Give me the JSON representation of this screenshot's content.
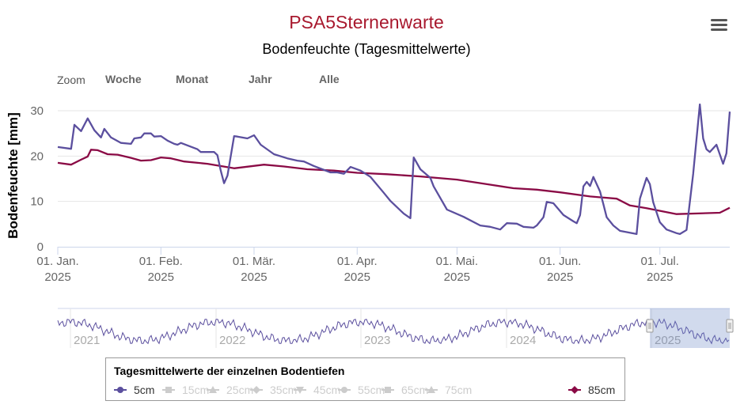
{
  "title": "PSA5Sternenwarte",
  "subtitle": "Bodenfeuchte (Tagesmittelwerte)",
  "menu_icon": "hamburger-menu-icon",
  "range_selector": {
    "label": "Zoom",
    "buttons": [
      "Woche",
      "Monat",
      "Jahr",
      "Alle"
    ]
  },
  "colors": {
    "title": "#a8192e",
    "series_5cm": "#5b4f9e",
    "series_85cm": "#8a0a45",
    "inactive": "#cccccc"
  },
  "legend": {
    "title": "Tagesmittelwerte der einzelnen Bodentiefen",
    "items": [
      {
        "label": "5cm",
        "visible": true,
        "symbol": "circle"
      },
      {
        "label": "15cm",
        "visible": false,
        "symbol": "square"
      },
      {
        "label": "25cm",
        "visible": false,
        "symbol": "triangle"
      },
      {
        "label": "35cm",
        "visible": false,
        "symbol": "diamond"
      },
      {
        "label": "45cm",
        "visible": false,
        "symbol": "triangle-down"
      },
      {
        "label": "55cm",
        "visible": false,
        "symbol": "circle"
      },
      {
        "label": "65cm",
        "visible": false,
        "symbol": "square"
      },
      {
        "label": "75cm",
        "visible": false,
        "symbol": "triangle"
      },
      {
        "label": "85cm",
        "visible": true,
        "symbol": "diamond"
      }
    ]
  },
  "navigator": {
    "year_labels": [
      "2021",
      "2022",
      "2023",
      "2024",
      "2025"
    ]
  },
  "chart_data": {
    "type": "line",
    "title": "Bodenfeuchte (Tagesmittelwerte)",
    "ylabel": "Bodenfeuchte [mm]",
    "ylim": [
      0,
      30
    ],
    "yticks": [
      "0",
      "10",
      "20",
      "30"
    ],
    "xlim": [
      "2025-01-01",
      "2025-07-22"
    ],
    "xticks": [
      {
        "date": "2025-01-01",
        "label": [
          "01. Jan.",
          "2025"
        ]
      },
      {
        "date": "2025-02-01",
        "label": [
          "01. Feb.",
          "2025"
        ]
      },
      {
        "date": "2025-03-01",
        "label": [
          "01. Mär.",
          "2025"
        ]
      },
      {
        "date": "2025-04-01",
        "label": [
          "01. Apr.",
          "2025"
        ]
      },
      {
        "date": "2025-05-01",
        "label": [
          "01. Mai.",
          "2025"
        ]
      },
      {
        "date": "2025-06-01",
        "label": [
          "01. Jun.",
          "2025"
        ]
      },
      {
        "date": "2025-07-01",
        "label": [
          "01. Jul.",
          "2025"
        ]
      }
    ],
    "grid": true,
    "legend_position": "bottom",
    "series": [
      {
        "name": "5cm",
        "color": "#5b4f9e",
        "points": [
          [
            "2025-01-01",
            22.0
          ],
          [
            "2025-01-05",
            21.6
          ],
          [
            "2025-01-06",
            26.9
          ],
          [
            "2025-01-08",
            25.5
          ],
          [
            "2025-01-10",
            28.3
          ],
          [
            "2025-01-12",
            25.7
          ],
          [
            "2025-01-14",
            24.1
          ],
          [
            "2025-01-15",
            26.0
          ],
          [
            "2025-01-17",
            24.1
          ],
          [
            "2025-01-20",
            22.9
          ],
          [
            "2025-01-23",
            22.7
          ],
          [
            "2025-01-24",
            23.9
          ],
          [
            "2025-01-26",
            24.1
          ],
          [
            "2025-01-27",
            25.0
          ],
          [
            "2025-01-29",
            25.0
          ],
          [
            "2025-01-30",
            24.3
          ],
          [
            "2025-02-01",
            24.4
          ],
          [
            "2025-02-03",
            23.4
          ],
          [
            "2025-02-05",
            22.7
          ],
          [
            "2025-02-06",
            22.5
          ],
          [
            "2025-02-07",
            22.9
          ],
          [
            "2025-02-12",
            21.5
          ],
          [
            "2025-02-13",
            20.9
          ],
          [
            "2025-02-17",
            20.9
          ],
          [
            "2025-02-18",
            20.2
          ],
          [
            "2025-02-19",
            16.8
          ],
          [
            "2025-02-20",
            14.0
          ],
          [
            "2025-02-21",
            15.7
          ],
          [
            "2025-02-23",
            24.4
          ],
          [
            "2025-02-24",
            24.3
          ],
          [
            "2025-02-27",
            23.9
          ],
          [
            "2025-03-01",
            24.6
          ],
          [
            "2025-03-03",
            22.5
          ],
          [
            "2025-03-07",
            20.4
          ],
          [
            "2025-03-11",
            19.5
          ],
          [
            "2025-03-14",
            19.0
          ],
          [
            "2025-03-16",
            18.8
          ],
          [
            "2025-03-19",
            17.8
          ],
          [
            "2025-03-24",
            16.4
          ],
          [
            "2025-03-26",
            16.4
          ],
          [
            "2025-03-28",
            16.1
          ],
          [
            "2025-03-30",
            17.6
          ],
          [
            "2025-04-02",
            16.8
          ],
          [
            "2025-04-05",
            15.4
          ],
          [
            "2025-04-09",
            11.9
          ],
          [
            "2025-04-11",
            10.1
          ],
          [
            "2025-04-15",
            7.3
          ],
          [
            "2025-04-17",
            6.3
          ],
          [
            "2025-04-18",
            19.7
          ],
          [
            "2025-04-20",
            17.1
          ],
          [
            "2025-04-23",
            15.2
          ],
          [
            "2025-04-24",
            13.3
          ],
          [
            "2025-04-28",
            8.2
          ],
          [
            "2025-05-03",
            6.6
          ],
          [
            "2025-05-08",
            4.7
          ],
          [
            "2025-05-11",
            4.4
          ],
          [
            "2025-05-14",
            3.8
          ],
          [
            "2025-05-16",
            5.2
          ],
          [
            "2025-05-19",
            5.1
          ],
          [
            "2025-05-21",
            4.4
          ],
          [
            "2025-05-24",
            4.2
          ],
          [
            "2025-05-25",
            4.7
          ],
          [
            "2025-05-27",
            6.5
          ],
          [
            "2025-05-28",
            9.9
          ],
          [
            "2025-05-30",
            9.6
          ],
          [
            "2025-06-02",
            7.0
          ],
          [
            "2025-06-05",
            5.6
          ],
          [
            "2025-06-06",
            5.2
          ],
          [
            "2025-06-07",
            7.0
          ],
          [
            "2025-06-08",
            13.3
          ],
          [
            "2025-06-09",
            14.3
          ],
          [
            "2025-06-10",
            13.4
          ],
          [
            "2025-06-11",
            15.4
          ],
          [
            "2025-06-13",
            12.2
          ],
          [
            "2025-06-14",
            9.4
          ],
          [
            "2025-06-15",
            6.5
          ],
          [
            "2025-06-17",
            4.7
          ],
          [
            "2025-06-19",
            3.5
          ],
          [
            "2025-06-24",
            2.8
          ],
          [
            "2025-06-25",
            10.6
          ],
          [
            "2025-06-27",
            15.2
          ],
          [
            "2025-06-28",
            13.8
          ],
          [
            "2025-06-29",
            9.8
          ],
          [
            "2025-07-01",
            5.4
          ],
          [
            "2025-07-03",
            3.8
          ],
          [
            "2025-07-06",
            3.0
          ],
          [
            "2025-07-07",
            2.8
          ],
          [
            "2025-07-09",
            3.7
          ],
          [
            "2025-07-11",
            16.1
          ],
          [
            "2025-07-13",
            31.4
          ],
          [
            "2025-07-14",
            23.9
          ],
          [
            "2025-07-15",
            21.5
          ],
          [
            "2025-07-16",
            20.9
          ],
          [
            "2025-07-18",
            22.5
          ],
          [
            "2025-07-20",
            18.3
          ],
          [
            "2025-07-21",
            20.6
          ],
          [
            "2025-07-22",
            29.8
          ]
        ]
      },
      {
        "name": "85cm",
        "color": "#8a0a45",
        "points": [
          [
            "2025-01-01",
            18.5
          ],
          [
            "2025-01-05",
            18.1
          ],
          [
            "2025-01-08",
            19.2
          ],
          [
            "2025-01-10",
            19.9
          ],
          [
            "2025-01-11",
            21.4
          ],
          [
            "2025-01-13",
            21.3
          ],
          [
            "2025-01-16",
            20.4
          ],
          [
            "2025-01-19",
            20.3
          ],
          [
            "2025-01-23",
            19.6
          ],
          [
            "2025-01-26",
            19.0
          ],
          [
            "2025-01-29",
            19.1
          ],
          [
            "2025-02-01",
            19.7
          ],
          [
            "2025-02-04",
            19.5
          ],
          [
            "2025-02-08",
            18.8
          ],
          [
            "2025-02-15",
            18.3
          ],
          [
            "2025-02-23",
            17.3
          ],
          [
            "2025-03-04",
            18.1
          ],
          [
            "2025-03-10",
            17.7
          ],
          [
            "2025-03-17",
            17.1
          ],
          [
            "2025-03-25",
            16.8
          ],
          [
            "2025-04-01",
            16.3
          ],
          [
            "2025-04-10",
            16.0
          ],
          [
            "2025-04-20",
            15.5
          ],
          [
            "2025-05-01",
            14.8
          ],
          [
            "2025-05-10",
            13.8
          ],
          [
            "2025-05-18",
            12.9
          ],
          [
            "2025-05-25",
            12.6
          ],
          [
            "2025-06-01",
            12.0
          ],
          [
            "2025-06-10",
            11.1
          ],
          [
            "2025-06-18",
            10.6
          ],
          [
            "2025-06-22",
            9.1
          ],
          [
            "2025-06-27",
            8.5
          ],
          [
            "2025-07-06",
            7.2
          ],
          [
            "2025-07-19",
            7.5
          ],
          [
            "2025-07-22",
            8.6
          ]
        ]
      }
    ]
  }
}
